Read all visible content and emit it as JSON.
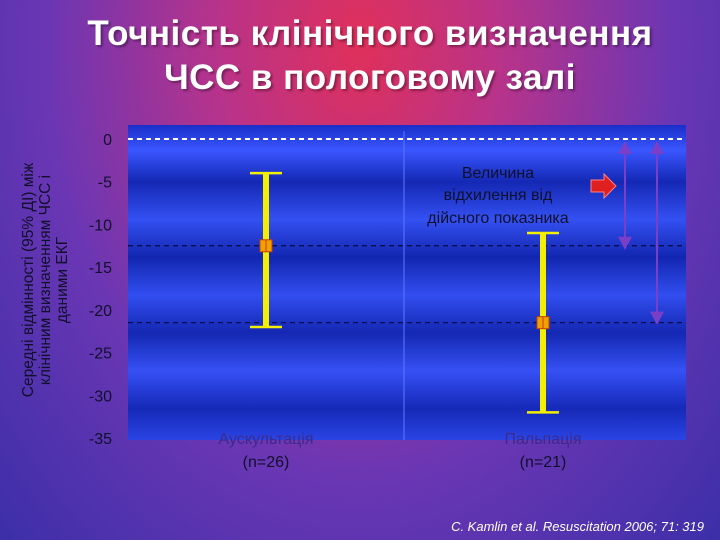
{
  "title": [
    "Точність клінічного визначення",
    "ЧСС в пологовому залі"
  ],
  "y_axis_label": [
    "Середні відмінності (95% ДІ) між",
    "клінічним визначенням ЧСС і",
    "даними ЕКГ"
  ],
  "annotation": [
    "Величина",
    "відхилення від",
    "дійсного показника"
  ],
  "credit": "C. Kamlin et al. Resuscitation 2006; 71: 319",
  "colors": {
    "plot_bg": "#1a2fcf",
    "error_bar": "#f4ee00",
    "marker": "#f2a000",
    "arrow_red": "#e02020",
    "arrow_purple": "#7a3fc8",
    "text_dark": "#10102a",
    "text_white": "#ffffff"
  },
  "chart_data": {
    "type": "errorbar",
    "ylim": [
      -35,
      0
    ],
    "yticks": [
      0,
      -5,
      -10,
      -15,
      -20,
      -25,
      -30,
      -35
    ],
    "ytick_labels": [
      "0",
      "-5",
      "-10",
      "-15",
      "-20",
      "-25",
      "-30",
      "-35"
    ],
    "ylabel": "Середні відмінності (95% ДІ) між клінічним визначенням ЧСС і даними ЕКГ",
    "grid": false,
    "reference_lines": [
      0,
      -12.5,
      -21.5
    ],
    "categories": [
      {
        "label": "Аускультація",
        "n_label": "(n=26)",
        "mean": -12.5,
        "lower": -22,
        "upper": -4
      },
      {
        "label": "Пальпація",
        "n_label": "(n=21)",
        "mean": -21.5,
        "lower": -32,
        "upper": -11
      }
    ]
  }
}
